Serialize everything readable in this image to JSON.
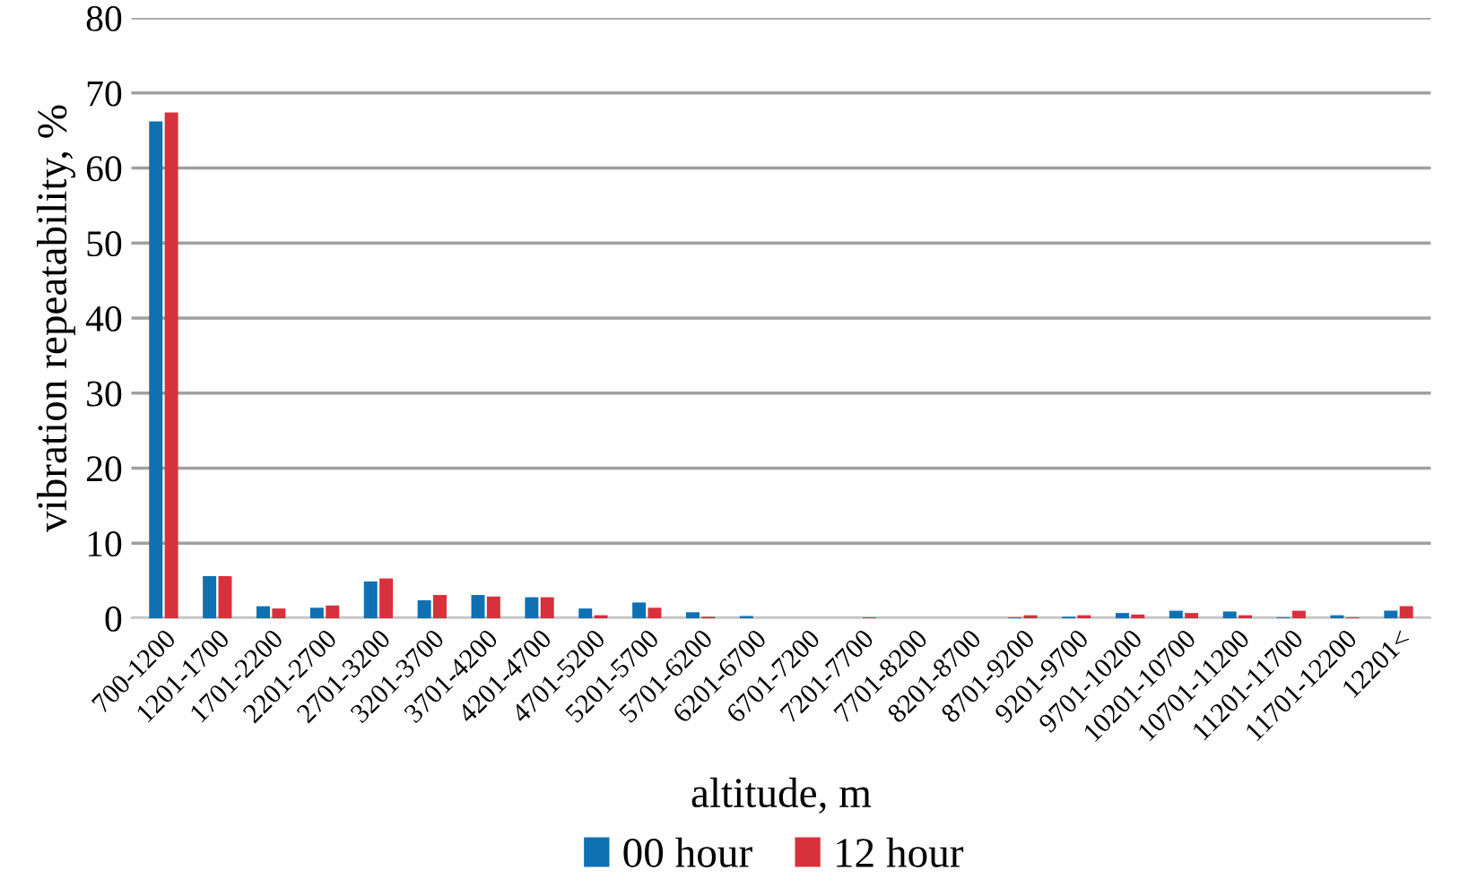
{
  "chart_data": {
    "type": "bar",
    "xlabel": "altitude, m",
    "ylabel": "vibration repeatability, %",
    "categories": [
      "700-1200",
      "1201-1700",
      "1701-2200",
      "2201-2700",
      "2701-3200",
      "3201-3700",
      "3701-4200",
      "4201-4700",
      "4701-5200",
      "5201-5700",
      "5701-6200",
      "6201-6700",
      "6701-7200",
      "7201-7700",
      "7701-8200",
      "8201-8700",
      "8701-9200",
      "9201-9700",
      "9701-10200",
      "10201-10700",
      "10701-11200",
      "11201-11700",
      "11701-12200",
      "12201<"
    ],
    "series": [
      {
        "name": "00 hour",
        "color": "#0f70b2",
        "values": [
          66.2,
          5.6,
          1.6,
          1.4,
          4.9,
          2.4,
          3.1,
          2.8,
          1.3,
          2.1,
          0.8,
          0.3,
          0,
          0,
          0,
          0,
          0.1,
          0.2,
          0.7,
          1.0,
          0.9,
          0.1,
          0.4,
          1.0
        ]
      },
      {
        "name": "12 hour",
        "color": "#d8313e",
        "values": [
          67.4,
          5.6,
          1.3,
          1.7,
          5.3,
          3.1,
          2.9,
          2.8,
          0.4,
          1.4,
          0.2,
          0,
          0,
          0.1,
          0,
          0,
          0.4,
          0.4,
          0.5,
          0.7,
          0.4,
          1.0,
          0.1,
          1.6
        ]
      }
    ],
    "ylim": [
      0,
      80
    ],
    "yticks": [
      0,
      10,
      20,
      30,
      40,
      50,
      60,
      70,
      80
    ],
    "grid": "y",
    "legend": "bottom"
  }
}
